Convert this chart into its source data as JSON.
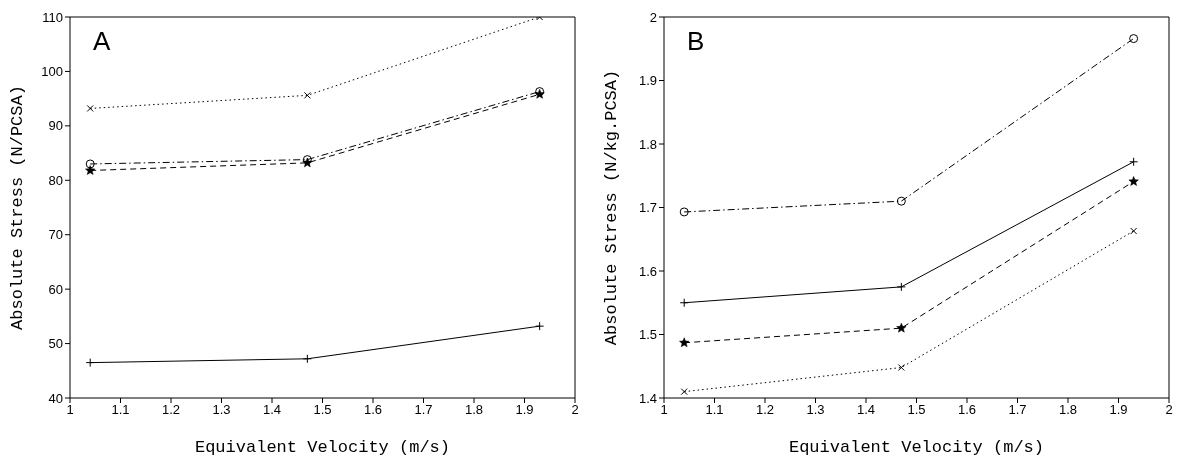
{
  "chart_data": [
    {
      "type": "line",
      "xlabel": "Equivalent Velocity (m/s)",
      "ylabel": "Absolute Stress (N/PCSA)",
      "annotations": [
        "A"
      ],
      "x": [
        1.04,
        1.47,
        1.93
      ],
      "xlim": [
        1,
        2
      ],
      "xticks": [
        1,
        1.1,
        1.2,
        1.3,
        1.4,
        1.5,
        1.6,
        1.7,
        1.8,
        1.9,
        2
      ],
      "ylim": [
        40,
        110
      ],
      "yticks": [
        40,
        50,
        60,
        70,
        80,
        90,
        100,
        110
      ],
      "grid": false,
      "legend": false,
      "series": [
        {
          "color": "#000000",
          "marker": "x",
          "line_style": "dotted",
          "values": [
            93.2,
            95.6,
            110
          ]
        },
        {
          "color": "#000000",
          "marker": "circle",
          "line_style": "dashdot",
          "values": [
            83.0,
            83.8,
            96.3
          ]
        },
        {
          "color": "#000000",
          "marker": "star",
          "line_style": "dashed",
          "values": [
            81.8,
            83.2,
            95.8
          ]
        },
        {
          "color": "#000000",
          "marker": "cross",
          "line_style": "solid",
          "values": [
            46.5,
            47.2,
            53.2
          ]
        }
      ]
    },
    {
      "type": "line",
      "xlabel": "Equivalent Velocity (m/s)",
      "ylabel": "Absolute Stress (N/kg.PCSA)",
      "annotations": [
        "B"
      ],
      "x": [
        1.04,
        1.47,
        1.93
      ],
      "xlim": [
        1,
        2
      ],
      "xticks": [
        1,
        1.1,
        1.2,
        1.3,
        1.4,
        1.5,
        1.6,
        1.7,
        1.8,
        1.9,
        2
      ],
      "ylim": [
        1.4,
        2
      ],
      "yticks": [
        1.4,
        1.5,
        1.6,
        1.7,
        1.8,
        1.9,
        2
      ],
      "grid": false,
      "legend": false,
      "series": [
        {
          "color": "#000000",
          "marker": "circle",
          "line_style": "dashdot",
          "values": [
            1.693,
            1.71,
            1.966
          ]
        },
        {
          "color": "#000000",
          "marker": "cross",
          "line_style": "solid",
          "values": [
            1.55,
            1.575,
            1.772
          ]
        },
        {
          "color": "#000000",
          "marker": "star",
          "line_style": "dashed",
          "values": [
            1.487,
            1.51,
            1.741
          ]
        },
        {
          "color": "#000000",
          "marker": "x",
          "line_style": "dotted",
          "values": [
            1.41,
            1.448,
            1.663
          ]
        }
      ]
    }
  ]
}
